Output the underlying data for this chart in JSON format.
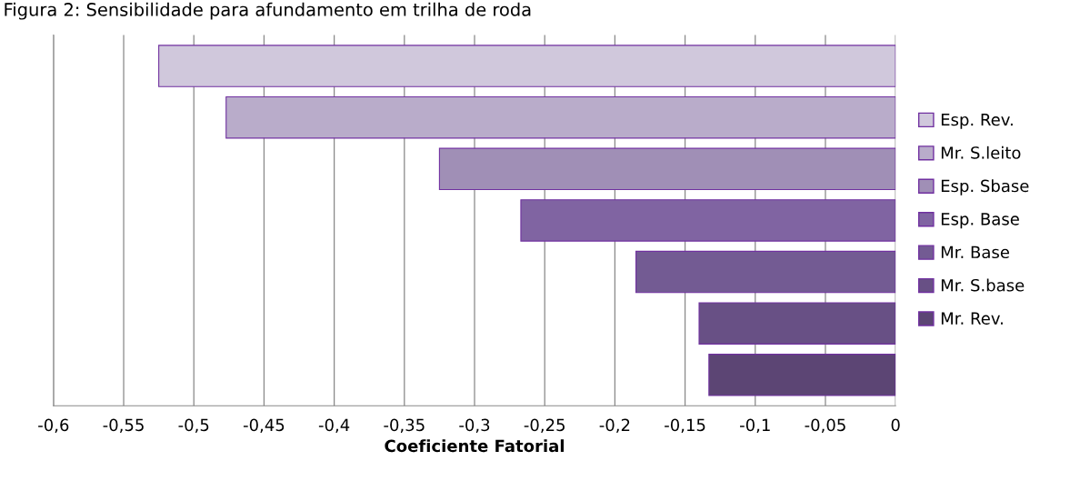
{
  "chart_data": {
    "type": "bar",
    "orientation": "horizontal",
    "title": "Figura 2: Sensibilidade para afundamento em trilha de roda",
    "xlabel": "Coeficiente Fatorial",
    "categories": [
      null,
      null,
      null,
      null,
      null,
      null,
      null
    ],
    "series": [
      {
        "name": "Esp. Rev.",
        "color": "#d0c8dc",
        "values": [
          -0.525,
          null,
          null,
          null,
          null,
          null,
          null
        ]
      },
      {
        "name": "Mr. S.leito",
        "color": "#b9acca",
        "values": [
          null,
          -0.477,
          null,
          null,
          null,
          null,
          null
        ]
      },
      {
        "name": "Esp. Sbase",
        "color": "#a08fb6",
        "values": [
          null,
          null,
          -0.325,
          null,
          null,
          null,
          null
        ]
      },
      {
        "name": "Esp. Base",
        "color": "#8064a2",
        "values": [
          null,
          null,
          null,
          -0.267,
          null,
          null,
          null
        ]
      },
      {
        "name": "Mr. Base",
        "color": "#735b93",
        "values": [
          null,
          null,
          null,
          null,
          -0.185,
          null,
          null
        ]
      },
      {
        "name": "Mr. S.base",
        "color": "#685085",
        "values": [
          null,
          null,
          null,
          null,
          null,
          -0.14,
          null
        ]
      },
      {
        "name": "Mr. Rev.",
        "color": "#5c4574",
        "values": [
          null,
          null,
          null,
          null,
          null,
          null,
          -0.133
        ]
      }
    ],
    "xlim": [
      -0.6,
      0
    ],
    "xticks": [
      {
        "value": -0.6,
        "label": "-0,6"
      },
      {
        "value": -0.55,
        "label": "-0,55"
      },
      {
        "value": -0.5,
        "label": "-0,5"
      },
      {
        "value": -0.45,
        "label": "-0,45"
      },
      {
        "value": -0.4,
        "label": "-0,4"
      },
      {
        "value": -0.35,
        "label": "-0,35"
      },
      {
        "value": -0.3,
        "label": "-0,3"
      },
      {
        "value": -0.25,
        "label": "-0,25"
      },
      {
        "value": -0.2,
        "label": "-0,2"
      },
      {
        "value": -0.15,
        "label": "-0,15"
      },
      {
        "value": -0.1,
        "label": "-0,1"
      },
      {
        "value": -0.05,
        "label": "-0,05"
      },
      {
        "value": 0,
        "label": "0"
      }
    ],
    "grid": "x",
    "legend": "right"
  }
}
